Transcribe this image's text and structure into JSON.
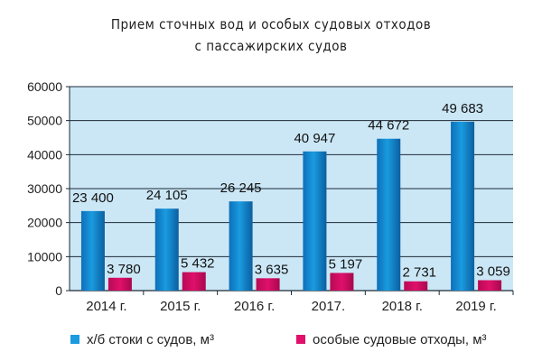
{
  "chart_data": {
    "type": "bar",
    "title_line1": "Прием сточных вод и особых судовых отходов",
    "title_line2": "с пассажирских судов",
    "categories": [
      "2014 г.",
      "2015 г.",
      "2016 г.",
      "2017.",
      "2018 г.",
      "2019 г."
    ],
    "series": [
      {
        "name": "х/б стоки с судов, м³",
        "values": [
          23400,
          24105,
          26245,
          40947,
          44672,
          49683
        ],
        "labels": [
          "23 400",
          "24 105",
          "26 245",
          "40 947",
          "44 672",
          "49 683"
        ],
        "color": "#1a9be0"
      },
      {
        "name": "особые судовые отходы, м³",
        "values": [
          3780,
          5432,
          3635,
          5197,
          2731,
          3059
        ],
        "labels": [
          "3 780",
          "5 432",
          "3 635",
          "5 197",
          "2 731",
          "3 059"
        ],
        "color": "#e0106b"
      }
    ],
    "ylim": [
      0,
      60000
    ],
    "yticks": [
      0,
      10000,
      20000,
      30000,
      40000,
      50000,
      60000
    ],
    "ytick_labels": [
      "0",
      "10000",
      "20000",
      "30000",
      "40000",
      "50000",
      "60000"
    ],
    "grid": true,
    "legend_position": "bottom",
    "plot_background": "#cbe7f6",
    "grid_color": "#1e2a36"
  }
}
